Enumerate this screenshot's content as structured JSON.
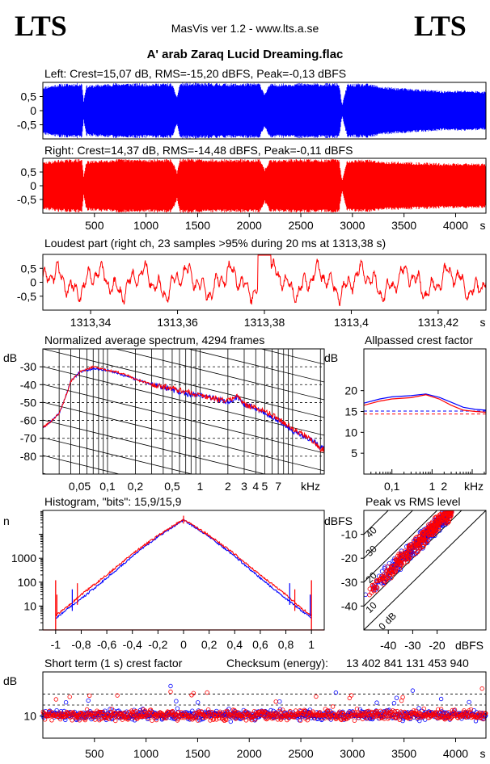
{
  "header": {
    "logo_left": "LTS",
    "logo_right": "LTS",
    "app_title": "MasVis ver 1.2 - www.lts.a.se",
    "file_name": "A' arab Zaraq Lucid Dreaming.flac"
  },
  "colors": {
    "left": "#0000ff",
    "right": "#ff0000",
    "grid": "#000000"
  },
  "chart_data": [
    {
      "id": "left_waveform",
      "type": "area",
      "title": "Left: Crest=15,07 dB, RMS=-15,20 dBFS, Peak=-0,13 dBFS",
      "series": [
        {
          "name": "",
          "color": "#0000ff"
        }
      ],
      "ylim": [
        -1,
        1
      ],
      "yticks": [
        "0,5",
        "0",
        "-0,5"
      ],
      "ytick_values": [
        0.5,
        0,
        -0.5
      ],
      "xlim": [
        0,
        4294
      ],
      "envelope": [
        [
          0,
          0.85
        ],
        [
          150,
          0.95
        ],
        [
          380,
          0.98
        ],
        [
          395,
          0.35
        ],
        [
          420,
          0.9
        ],
        [
          700,
          0.98
        ],
        [
          1000,
          0.97
        ],
        [
          1150,
          0.98
        ],
        [
          1250,
          0.97
        ],
        [
          1300,
          0.5
        ],
        [
          1330,
          0.99
        ],
        [
          1600,
          0.98
        ],
        [
          1900,
          0.97
        ],
        [
          2100,
          0.98
        ],
        [
          2150,
          0.6
        ],
        [
          2200,
          0.95
        ],
        [
          2350,
          0.97
        ],
        [
          2500,
          0.98
        ],
        [
          2700,
          0.97
        ],
        [
          2870,
          0.98
        ],
        [
          2900,
          0.2
        ],
        [
          2950,
          0.95
        ],
        [
          3150,
          0.96
        ],
        [
          3300,
          0.85
        ],
        [
          3500,
          0.8
        ],
        [
          3700,
          0.75
        ],
        [
          3900,
          0.7
        ],
        [
          4100,
          0.72
        ],
        [
          4294,
          0.68
        ]
      ]
    },
    {
      "id": "right_waveform",
      "type": "area",
      "title": "Right: Crest=14,37 dB, RMS=-14,48 dBFS, Peak=-0,11 dBFS",
      "series": [
        {
          "name": "",
          "color": "#ff0000"
        }
      ],
      "ylim": [
        -1,
        1
      ],
      "yticks": [
        "0,5",
        "0",
        "-0,5"
      ],
      "ytick_values": [
        0.5,
        0,
        -0.5
      ],
      "xlim": [
        0,
        4294
      ],
      "xticks": [
        "500",
        "1000",
        "1500",
        "2000",
        "2500",
        "3000",
        "3500",
        "4000"
      ],
      "xtick_values": [
        500,
        1000,
        1500,
        2000,
        2500,
        3000,
        3500,
        4000
      ],
      "x_unit": "s",
      "envelope": [
        [
          0,
          0.86
        ],
        [
          150,
          0.95
        ],
        [
          380,
          0.98
        ],
        [
          395,
          0.35
        ],
        [
          420,
          0.9
        ],
        [
          700,
          0.98
        ],
        [
          1000,
          0.97
        ],
        [
          1150,
          0.98
        ],
        [
          1250,
          0.97
        ],
        [
          1300,
          0.5
        ],
        [
          1330,
          0.99
        ],
        [
          1600,
          0.98
        ],
        [
          1900,
          0.97
        ],
        [
          2100,
          0.98
        ],
        [
          2150,
          0.6
        ],
        [
          2200,
          0.95
        ],
        [
          2350,
          0.97
        ],
        [
          2500,
          0.98
        ],
        [
          2700,
          0.97
        ],
        [
          2870,
          0.98
        ],
        [
          2900,
          0.2
        ],
        [
          2950,
          0.95
        ],
        [
          3150,
          0.96
        ],
        [
          3300,
          0.9
        ],
        [
          3500,
          0.88
        ],
        [
          3700,
          0.85
        ],
        [
          3900,
          0.82
        ],
        [
          4100,
          0.84
        ],
        [
          4294,
          0.8
        ]
      ]
    },
    {
      "id": "loudest_part",
      "type": "line",
      "title": "Loudest part (right ch, 23 samples >95% during 20 ms at 1313,38 s)",
      "series": [
        {
          "name": "",
          "color": "#ff0000"
        }
      ],
      "xlim": [
        1313.329,
        1313.431
      ],
      "ylim": [
        -1,
        1
      ],
      "yticks": [
        "0,5",
        "0",
        "-0,5"
      ],
      "ytick_values": [
        0.5,
        0,
        -0.5
      ],
      "xticks": [
        "1313,34",
        "1313,36",
        "1313,38",
        "1313,4",
        "1313,42"
      ],
      "xtick_values": [
        1313.34,
        1313.36,
        1313.38,
        1313.4,
        1313.42
      ],
      "x_unit": "s"
    },
    {
      "id": "spectrum",
      "type": "line",
      "title": "Normalized average spectrum, 4294 frames",
      "ylabel": "dB",
      "x_scale": "log",
      "xlim": [
        0.02,
        22
      ],
      "ylim": [
        -90,
        -20
      ],
      "yticks": [
        "-30",
        "-40",
        "-50",
        "-60",
        "-70",
        "-80"
      ],
      "ytick_values": [
        -30,
        -40,
        -50,
        -60,
        -70,
        -80
      ],
      "xticks": [
        "0,05",
        "0,1",
        "0,2",
        "0,5",
        "1",
        "2",
        "3",
        "4",
        "5",
        "7"
      ],
      "xtick_values": [
        0.05,
        0.1,
        0.2,
        0.5,
        1,
        2,
        3,
        4,
        5,
        7
      ],
      "x_unit": "kHz",
      "series": [
        {
          "name": "",
          "color": "#0000ff",
          "points": [
            [
              0.02,
              -64
            ],
            [
              0.03,
              -56
            ],
            [
              0.04,
              -38
            ],
            [
              0.05,
              -33
            ],
            [
              0.07,
              -31
            ],
            [
              0.1,
              -32
            ],
            [
              0.15,
              -35
            ],
            [
              0.2,
              -37
            ],
            [
              0.3,
              -40
            ],
            [
              0.5,
              -43
            ],
            [
              0.7,
              -45
            ],
            [
              1,
              -46
            ],
            [
              1.5,
              -48
            ],
            [
              2,
              -50
            ],
            [
              2.5,
              -47
            ],
            [
              3,
              -51
            ],
            [
              4,
              -53
            ],
            [
              5,
              -56
            ],
            [
              7,
              -60
            ],
            [
              10,
              -66
            ],
            [
              15,
              -70
            ],
            [
              20,
              -75
            ]
          ]
        },
        {
          "name": "",
          "color": "#ff0000",
          "points": [
            [
              0.02,
              -64
            ],
            [
              0.03,
              -56
            ],
            [
              0.04,
              -38
            ],
            [
              0.05,
              -33
            ],
            [
              0.07,
              -30
            ],
            [
              0.1,
              -32
            ],
            [
              0.15,
              -34
            ],
            [
              0.2,
              -37
            ],
            [
              0.3,
              -40
            ],
            [
              0.5,
              -42
            ],
            [
              0.7,
              -44
            ],
            [
              1,
              -46
            ],
            [
              1.5,
              -48
            ],
            [
              2,
              -49
            ],
            [
              2.5,
              -46
            ],
            [
              3,
              -51
            ],
            [
              4,
              -53
            ],
            [
              5,
              -55
            ],
            [
              7,
              -59
            ],
            [
              10,
              -65
            ],
            [
              15,
              -70
            ],
            [
              20,
              -76
            ]
          ]
        }
      ]
    },
    {
      "id": "allpassed_crest",
      "type": "line",
      "title": "Allpassed crest factor",
      "ylabel": "dB",
      "x_scale": "log",
      "xlim": [
        0.02,
        22
      ],
      "ylim": [
        0,
        30
      ],
      "yticks": [
        "20",
        "15",
        "10",
        "5"
      ],
      "ytick_values": [
        20,
        15,
        10,
        5
      ],
      "xticks": [
        "0,1",
        "1",
        "2"
      ],
      "xtick_values": [
        0.1,
        1,
        2
      ],
      "x_unit": "kHz",
      "reference_lines": [
        {
          "color": "#0000ff",
          "value": 15.1
        },
        {
          "color": "#ff0000",
          "value": 14.4
        }
      ],
      "series": [
        {
          "name": "",
          "color": "#0000ff",
          "points": [
            [
              0.02,
              17
            ],
            [
              0.05,
              18
            ],
            [
              0.1,
              18.5
            ],
            [
              0.3,
              18.8
            ],
            [
              0.7,
              19.2
            ],
            [
              1.5,
              18.4
            ],
            [
              3,
              17.2
            ],
            [
              6,
              16
            ],
            [
              12,
              15.5
            ],
            [
              22,
              15.3
            ]
          ]
        },
        {
          "name": "",
          "color": "#ff0000",
          "points": [
            [
              0.02,
              16.5
            ],
            [
              0.05,
              17.5
            ],
            [
              0.1,
              18
            ],
            [
              0.3,
              18.3
            ],
            [
              0.7,
              19
            ],
            [
              1.5,
              18
            ],
            [
              3,
              16.5
            ],
            [
              6,
              15.3
            ],
            [
              12,
              15
            ],
            [
              22,
              14.8
            ]
          ]
        }
      ]
    },
    {
      "id": "histogram",
      "type": "line",
      "title": "Histogram, \"bits\": 15,9/15,9",
      "ylabel": "n",
      "y_scale": "log",
      "xlim": [
        -1.1,
        1.1
      ],
      "ylim": [
        1,
        100000
      ],
      "yticks": [
        "1000",
        "100",
        "10"
      ],
      "ytick_values": [
        1000,
        100,
        10
      ],
      "xticks": [
        "-1",
        "-0,8",
        "-0,6",
        "-0,4",
        "-0,2",
        "0",
        "0,2",
        "0,4",
        "0,6",
        "0,8",
        "1"
      ],
      "xtick_values": [
        -1,
        -0.8,
        -0.6,
        -0.4,
        -0.2,
        0,
        0.2,
        0.4,
        0.6,
        0.8,
        1
      ],
      "series": [
        {
          "name": "",
          "color": "#0000ff",
          "points": [
            [
              -1,
              3
            ],
            [
              -0.9,
              8
            ],
            [
              -0.8,
              20
            ],
            [
              -0.6,
              150
            ],
            [
              -0.4,
              1200
            ],
            [
              -0.2,
              8000
            ],
            [
              0,
              40000
            ],
            [
              0.2,
              8000
            ],
            [
              0.4,
              1200
            ],
            [
              0.6,
              150
            ],
            [
              0.8,
              20
            ],
            [
              0.9,
              8
            ],
            [
              1,
              3
            ]
          ]
        },
        {
          "name": "",
          "color": "#ff0000",
          "points": [
            [
              -1,
              4
            ],
            [
              -0.9,
              10
            ],
            [
              -0.8,
              30
            ],
            [
              -0.6,
              200
            ],
            [
              -0.4,
              1500
            ],
            [
              -0.2,
              9000
            ],
            [
              0,
              42000
            ],
            [
              0.2,
              9000
            ],
            [
              0.4,
              1500
            ],
            [
              0.6,
              200
            ],
            [
              0.8,
              30
            ],
            [
              0.9,
              10
            ],
            [
              1,
              4
            ]
          ]
        }
      ],
      "spikes": [
        [
          -0.99,
          30
        ],
        [
          -0.87,
          50
        ],
        [
          -0.83,
          90
        ],
        [
          0.83,
          90
        ],
        [
          0.87,
          50
        ],
        [
          0.99,
          30
        ]
      ]
    },
    {
      "id": "peak_vs_rms",
      "type": "scatter",
      "title": "Peak vs RMS level",
      "xlabel": "dBFS",
      "ylabel": "dBFS",
      "xlim": [
        -50,
        0
      ],
      "ylim": [
        -50,
        0
      ],
      "xticks": [
        "-40",
        "-30",
        "-20"
      ],
      "xtick_values": [
        -40,
        -30,
        -20
      ],
      "yticks": [
        "-10",
        "-20",
        "-30",
        "-40"
      ],
      "ytick_values": [
        -10,
        -20,
        -30,
        -40
      ],
      "diagonal_labels": [
        "0 dB",
        "10",
        "20",
        "30",
        "40"
      ],
      "diagonal_values": [
        0,
        10,
        20,
        30,
        40
      ],
      "cluster": {
        "rms_range": [
          -50,
          -14
        ],
        "crest_center": 14,
        "crest_spread": 4
      },
      "series": [
        {
          "name": "",
          "color": "#0000ff"
        },
        {
          "name": "",
          "color": "#ff0000"
        }
      ]
    },
    {
      "id": "short_term_crest",
      "type": "scatter",
      "title": "Short term (1 s) crest factor",
      "checksum_label": "Checksum (energy):",
      "checksum_value": "13 402 841 131 453 940",
      "ylabel": "dB",
      "xlim": [
        0,
        4294
      ],
      "ylim": [
        0,
        30
      ],
      "yticks": [
        "10"
      ],
      "ytick_values": [
        10
      ],
      "reference_lines": [
        {
          "value": 20
        },
        {
          "value": 15
        }
      ],
      "xticks": [
        "500",
        "1000",
        "1500",
        "2000",
        "2500",
        "3000",
        "3500",
        "4000"
      ],
      "xtick_values": [
        500,
        1000,
        1500,
        2000,
        2500,
        3000,
        3500,
        4000
      ],
      "x_unit": "s",
      "crest_center": 10.5,
      "crest_spread": 2.2,
      "series": [
        {
          "name": "",
          "color": "#0000ff"
        },
        {
          "name": "",
          "color": "#ff0000"
        }
      ]
    }
  ]
}
